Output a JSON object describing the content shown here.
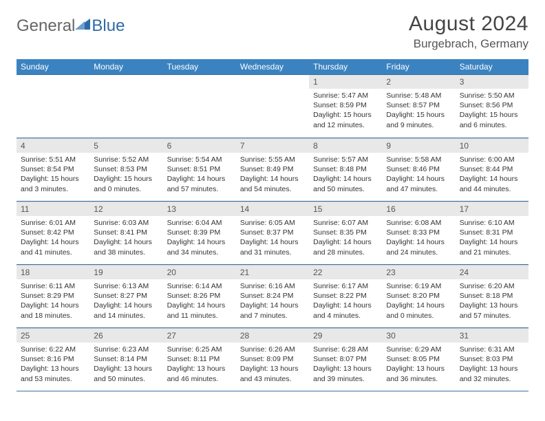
{
  "brand": {
    "part1": "General",
    "part2": "Blue",
    "logo_color": "#2f6aa8",
    "text_color": "#666666"
  },
  "title": {
    "month": "August 2024",
    "location": "Burgebrach, Germany"
  },
  "colors": {
    "header_bg": "#3b83c0",
    "header_text": "#ffffff",
    "daynum_bg": "#e8e8e8",
    "row_border": "#3b6fa0",
    "body_text": "#333333"
  },
  "typography": {
    "month_fontsize": 30,
    "location_fontsize": 17,
    "dayhead_fontsize": 12,
    "cell_fontsize": 10.5
  },
  "layout": {
    "columns": 7,
    "rows": 5,
    "first_weekday": "Sunday",
    "blank_leading_cells": 4
  },
  "weekdays": [
    "Sunday",
    "Monday",
    "Tuesday",
    "Wednesday",
    "Thursday",
    "Friday",
    "Saturday"
  ],
  "days": [
    {
      "n": "1",
      "sunrise": "5:47 AM",
      "sunset": "8:59 PM",
      "dl_h": 15,
      "dl_m": 12
    },
    {
      "n": "2",
      "sunrise": "5:48 AM",
      "sunset": "8:57 PM",
      "dl_h": 15,
      "dl_m": 9
    },
    {
      "n": "3",
      "sunrise": "5:50 AM",
      "sunset": "8:56 PM",
      "dl_h": 15,
      "dl_m": 6
    },
    {
      "n": "4",
      "sunrise": "5:51 AM",
      "sunset": "8:54 PM",
      "dl_h": 15,
      "dl_m": 3
    },
    {
      "n": "5",
      "sunrise": "5:52 AM",
      "sunset": "8:53 PM",
      "dl_h": 15,
      "dl_m": 0
    },
    {
      "n": "6",
      "sunrise": "5:54 AM",
      "sunset": "8:51 PM",
      "dl_h": 14,
      "dl_m": 57
    },
    {
      "n": "7",
      "sunrise": "5:55 AM",
      "sunset": "8:49 PM",
      "dl_h": 14,
      "dl_m": 54
    },
    {
      "n": "8",
      "sunrise": "5:57 AM",
      "sunset": "8:48 PM",
      "dl_h": 14,
      "dl_m": 50
    },
    {
      "n": "9",
      "sunrise": "5:58 AM",
      "sunset": "8:46 PM",
      "dl_h": 14,
      "dl_m": 47
    },
    {
      "n": "10",
      "sunrise": "6:00 AM",
      "sunset": "8:44 PM",
      "dl_h": 14,
      "dl_m": 44
    },
    {
      "n": "11",
      "sunrise": "6:01 AM",
      "sunset": "8:42 PM",
      "dl_h": 14,
      "dl_m": 41
    },
    {
      "n": "12",
      "sunrise": "6:03 AM",
      "sunset": "8:41 PM",
      "dl_h": 14,
      "dl_m": 38
    },
    {
      "n": "13",
      "sunrise": "6:04 AM",
      "sunset": "8:39 PM",
      "dl_h": 14,
      "dl_m": 34
    },
    {
      "n": "14",
      "sunrise": "6:05 AM",
      "sunset": "8:37 PM",
      "dl_h": 14,
      "dl_m": 31
    },
    {
      "n": "15",
      "sunrise": "6:07 AM",
      "sunset": "8:35 PM",
      "dl_h": 14,
      "dl_m": 28
    },
    {
      "n": "16",
      "sunrise": "6:08 AM",
      "sunset": "8:33 PM",
      "dl_h": 14,
      "dl_m": 24
    },
    {
      "n": "17",
      "sunrise": "6:10 AM",
      "sunset": "8:31 PM",
      "dl_h": 14,
      "dl_m": 21
    },
    {
      "n": "18",
      "sunrise": "6:11 AM",
      "sunset": "8:29 PM",
      "dl_h": 14,
      "dl_m": 18
    },
    {
      "n": "19",
      "sunrise": "6:13 AM",
      "sunset": "8:27 PM",
      "dl_h": 14,
      "dl_m": 14
    },
    {
      "n": "20",
      "sunrise": "6:14 AM",
      "sunset": "8:26 PM",
      "dl_h": 14,
      "dl_m": 11
    },
    {
      "n": "21",
      "sunrise": "6:16 AM",
      "sunset": "8:24 PM",
      "dl_h": 14,
      "dl_m": 7
    },
    {
      "n": "22",
      "sunrise": "6:17 AM",
      "sunset": "8:22 PM",
      "dl_h": 14,
      "dl_m": 4
    },
    {
      "n": "23",
      "sunrise": "6:19 AM",
      "sunset": "8:20 PM",
      "dl_h": 14,
      "dl_m": 0
    },
    {
      "n": "24",
      "sunrise": "6:20 AM",
      "sunset": "8:18 PM",
      "dl_h": 13,
      "dl_m": 57
    },
    {
      "n": "25",
      "sunrise": "6:22 AM",
      "sunset": "8:16 PM",
      "dl_h": 13,
      "dl_m": 53
    },
    {
      "n": "26",
      "sunrise": "6:23 AM",
      "sunset": "8:14 PM",
      "dl_h": 13,
      "dl_m": 50
    },
    {
      "n": "27",
      "sunrise": "6:25 AM",
      "sunset": "8:11 PM",
      "dl_h": 13,
      "dl_m": 46
    },
    {
      "n": "28",
      "sunrise": "6:26 AM",
      "sunset": "8:09 PM",
      "dl_h": 13,
      "dl_m": 43
    },
    {
      "n": "29",
      "sunrise": "6:28 AM",
      "sunset": "8:07 PM",
      "dl_h": 13,
      "dl_m": 39
    },
    {
      "n": "30",
      "sunrise": "6:29 AM",
      "sunset": "8:05 PM",
      "dl_h": 13,
      "dl_m": 36
    },
    {
      "n": "31",
      "sunrise": "6:31 AM",
      "sunset": "8:03 PM",
      "dl_h": 13,
      "dl_m": 32
    }
  ],
  "labels": {
    "sunrise": "Sunrise:",
    "sunset": "Sunset:",
    "daylight": "Daylight:",
    "hours": "hours",
    "and": "and",
    "minutes": "minutes."
  }
}
